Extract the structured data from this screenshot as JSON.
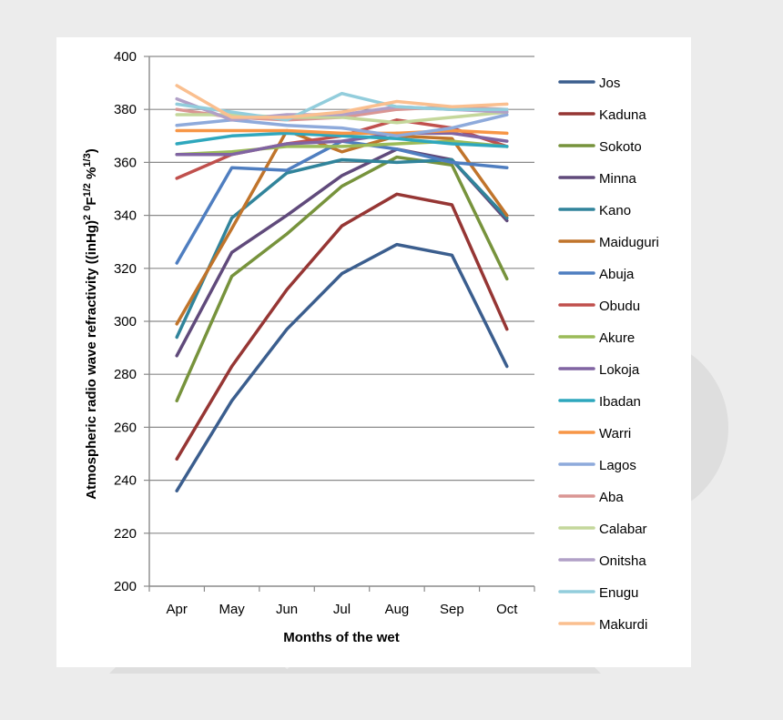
{
  "chart_data": {
    "type": "line",
    "title": "",
    "xlabel": "Months of the wet",
    "ylabel_parts": [
      "Atmospheric  radio wave refractivity ((inHg)",
      "2",
      " ",
      "0",
      "F",
      "1/2",
      " %",
      "1/3",
      ")"
    ],
    "ylim": [
      200,
      400
    ],
    "yticks": [
      200,
      220,
      240,
      260,
      280,
      300,
      320,
      340,
      360,
      380,
      400
    ],
    "categories": [
      "Apr",
      "May",
      "Jun",
      "Jul",
      "Aug",
      "Sep",
      "Oct"
    ],
    "grid": true,
    "legend": "right",
    "series": [
      {
        "name": "Jos",
        "color": "#3b5e8e",
        "values": [
          236,
          270,
          297,
          318,
          329,
          325,
          283
        ]
      },
      {
        "name": "Kaduna",
        "color": "#963634",
        "values": [
          248,
          283,
          312,
          336,
          348,
          344,
          297
        ]
      },
      {
        "name": "Sokoto",
        "color": "#77933c",
        "values": [
          270,
          317,
          333,
          351,
          362,
          359,
          316
        ]
      },
      {
        "name": "Minna",
        "color": "#604a7b",
        "values": [
          287,
          326,
          340,
          355,
          365,
          361,
          338
        ]
      },
      {
        "name": "Kano",
        "color": "#31849b",
        "values": [
          294,
          339,
          356,
          361,
          360,
          361,
          339
        ]
      },
      {
        "name": "Maiduguri",
        "color": "#c0742b",
        "values": [
          299,
          335,
          372,
          364,
          370,
          369,
          340
        ]
      },
      {
        "name": "Abuja",
        "color": "#4f7ec0",
        "values": [
          322,
          358,
          357,
          368,
          365,
          360,
          358
        ]
      },
      {
        "name": "Obudu",
        "color": "#c0504d",
        "values": [
          354,
          363,
          367,
          370,
          376,
          373,
          366
        ]
      },
      {
        "name": "Akure",
        "color": "#9bbb59",
        "values": [
          363,
          364,
          366,
          366,
          367,
          368,
          366
        ]
      },
      {
        "name": "Lokoja",
        "color": "#8064a2",
        "values": [
          363,
          363,
          367,
          368,
          371,
          371,
          368
        ]
      },
      {
        "name": "Ibadan",
        "color": "#2ea7bd",
        "values": [
          367,
          370,
          371,
          370,
          369,
          367,
          366
        ]
      },
      {
        "name": "Warri",
        "color": "#f79646",
        "values": [
          372,
          372,
          372,
          371,
          371,
          372,
          371
        ]
      },
      {
        "name": "Lagos",
        "color": "#8eaadb",
        "values": [
          374,
          376,
          374,
          373,
          370,
          373,
          378
        ]
      },
      {
        "name": "Aba",
        "color": "#da9694",
        "values": [
          380,
          377,
          376,
          377,
          380,
          381,
          380
        ]
      },
      {
        "name": "Calabar",
        "color": "#c4d79b",
        "values": [
          378,
          378,
          377,
          377,
          375,
          377,
          379
        ]
      },
      {
        "name": "Onitsha",
        "color": "#b1a0c7",
        "values": [
          384,
          376,
          378,
          378,
          381,
          380,
          379
        ]
      },
      {
        "name": "Enugu",
        "color": "#92cddc",
        "values": [
          382,
          379,
          376,
          386,
          381,
          380,
          380
        ]
      },
      {
        "name": "Makurdi",
        "color": "#fabf8f",
        "values": [
          389,
          377,
          377,
          379,
          383,
          381,
          382
        ]
      }
    ]
  }
}
